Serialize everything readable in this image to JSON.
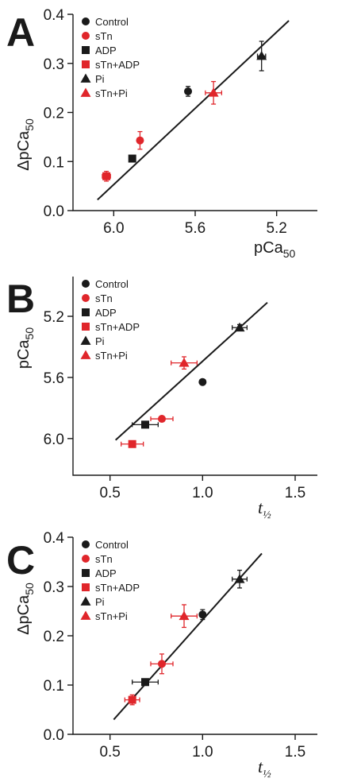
{
  "colors": {
    "black": "#1a1a1a",
    "red": "#e0262b"
  },
  "legend": [
    {
      "label": "Control",
      "marker": "circle",
      "color": "black"
    },
    {
      "label": "sTn",
      "marker": "circle",
      "color": "red"
    },
    {
      "label": "ADP",
      "marker": "square",
      "color": "black"
    },
    {
      "label": "sTn+ADP",
      "marker": "square",
      "color": "red"
    },
    {
      "label": "Pi",
      "marker": "triangle",
      "color": "black"
    },
    {
      "label": "sTn+Pi",
      "marker": "triangle",
      "color": "red"
    }
  ],
  "chart_data": [
    {
      "type": "scatter",
      "panel": "A",
      "xlabel_main": "pCa",
      "xlabel_sub": "50",
      "ylabel_main": "ΔpCa",
      "ylabel_sub": "50",
      "xlim": [
        6.2,
        5.0
      ],
      "ylim": [
        0.0,
        0.4
      ],
      "xticks": [
        6.0,
        5.6,
        5.2
      ],
      "xtick_labels": [
        "6.0",
        "5.6",
        "5.2"
      ],
      "yticks": [
        0.0,
        0.1,
        0.2,
        0.3,
        0.4
      ],
      "ytick_labels": [
        "0.0",
        "0.1",
        "0.2",
        "0.3",
        "0.4"
      ],
      "fit_line": {
        "x": [
          6.08,
          5.14
        ],
        "y": [
          0.022,
          0.387
        ]
      },
      "points": [
        {
          "series": "Control",
          "x": 5.635,
          "y": 0.243,
          "yerr": 0.01
        },
        {
          "series": "sTn",
          "x": 5.871,
          "y": 0.143,
          "yerr": 0.018
        },
        {
          "series": "ADP",
          "x": 5.909,
          "y": 0.106,
          "yerr": 0.005
        },
        {
          "series": "sTn+ADP",
          "x": 6.036,
          "y": 0.07,
          "xerr": 0.02,
          "yerr": 0.01
        },
        {
          "series": "Pi",
          "x": 5.274,
          "y": 0.315,
          "xerr": 0.02,
          "yerr": 0.03
        },
        {
          "series": "sTn+Pi",
          "x": 5.51,
          "y": 0.24,
          "xerr": 0.04,
          "yerr": 0.023
        }
      ]
    },
    {
      "type": "scatter",
      "panel": "B",
      "xlabel_main": "t",
      "xlabel_sub": "½",
      "ylabel_main": "pCa",
      "ylabel_sub": "50",
      "xlim": [
        0.3,
        1.62
      ],
      "ylim": [
        6.24,
        4.94
      ],
      "xticks": [
        0.5,
        1.0,
        1.5
      ],
      "xtick_labels": [
        "0.5",
        "1.0",
        "1.5"
      ],
      "yticks": [
        6.0,
        5.6,
        5.2
      ],
      "ytick_labels": [
        "6.0",
        "5.6",
        "5.2"
      ],
      "fit_line": {
        "x": [
          0.53,
          1.35
        ],
        "y": [
          6.01,
          5.11
        ]
      },
      "points": [
        {
          "series": "Control",
          "x": 1.0,
          "y": 5.63
        },
        {
          "series": "sTn",
          "x": 0.78,
          "y": 5.871,
          "xerr": 0.06
        },
        {
          "series": "ADP",
          "x": 0.69,
          "y": 5.909,
          "xerr": 0.07
        },
        {
          "series": "sTn+ADP",
          "x": 0.62,
          "y": 6.036,
          "xerr": 0.06
        },
        {
          "series": "Pi",
          "x": 1.2,
          "y": 5.274,
          "xerr": 0.04,
          "yerr": 0.02
        },
        {
          "series": "sTn+Pi",
          "x": 0.9,
          "y": 5.505,
          "xerr": 0.07,
          "yerr": 0.04
        }
      ]
    },
    {
      "type": "scatter",
      "panel": "C",
      "xlabel_main": "t",
      "xlabel_sub": "½",
      "ylabel_main": "ΔpCa",
      "ylabel_sub": "50",
      "xlim": [
        0.3,
        1.62
      ],
      "ylim": [
        0.0,
        0.4
      ],
      "xticks": [
        0.5,
        1.0,
        1.5
      ],
      "xtick_labels": [
        "0.5",
        "1.0",
        "1.5"
      ],
      "yticks": [
        0.0,
        0.1,
        0.2,
        0.3,
        0.4
      ],
      "ytick_labels": [
        "0.0",
        "0.1",
        "0.2",
        "0.3",
        "0.4"
      ],
      "fit_line": {
        "x": [
          0.52,
          1.32
        ],
        "y": [
          0.03,
          0.367
        ]
      },
      "points": [
        {
          "series": "Control",
          "x": 1.0,
          "y": 0.243,
          "yerr": 0.01
        },
        {
          "series": "sTn",
          "x": 0.78,
          "y": 0.143,
          "xerr": 0.06,
          "yerr": 0.02
        },
        {
          "series": "ADP",
          "x": 0.69,
          "y": 0.106,
          "xerr": 0.07
        },
        {
          "series": "sTn+ADP",
          "x": 0.62,
          "y": 0.07,
          "xerr": 0.04,
          "yerr": 0.01
        },
        {
          "series": "Pi",
          "x": 1.2,
          "y": 0.315,
          "xerr": 0.04,
          "yerr": 0.018
        },
        {
          "series": "sTn+Pi",
          "x": 0.9,
          "y": 0.24,
          "xerr": 0.07,
          "yerr": 0.023
        }
      ]
    }
  ]
}
